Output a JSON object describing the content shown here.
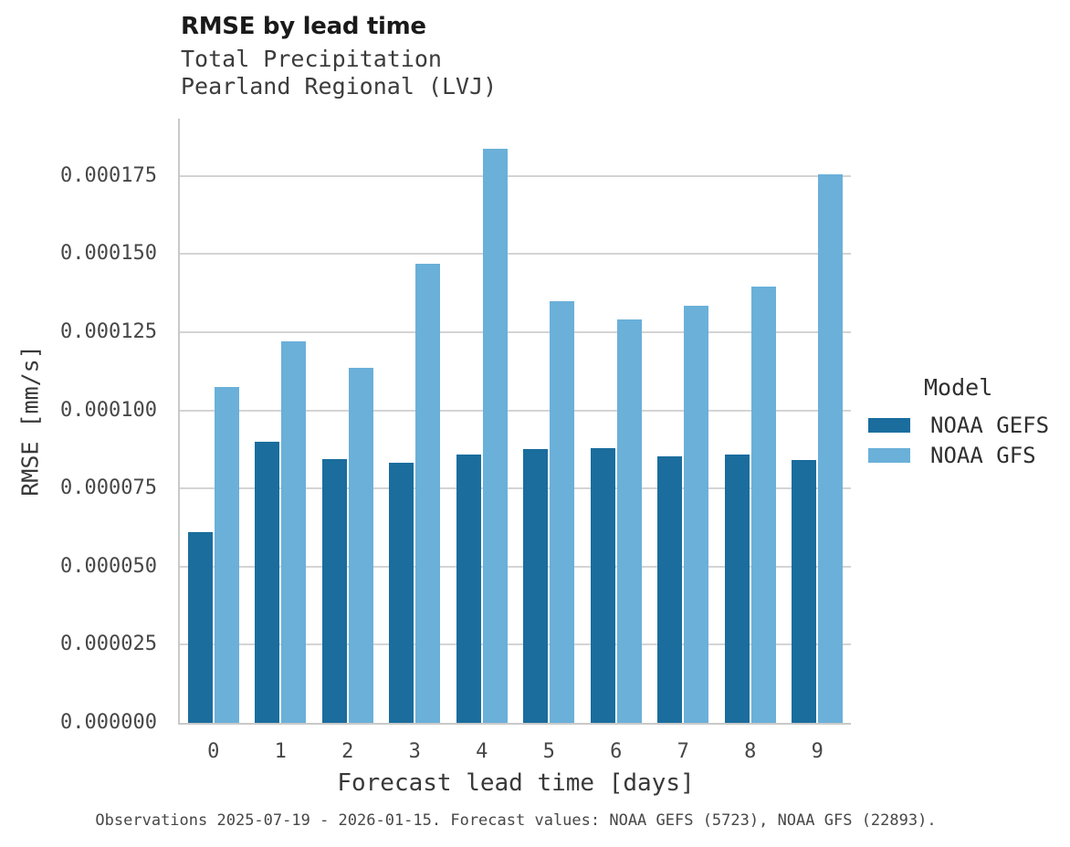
{
  "header": {
    "title": "RMSE by lead time",
    "subtitle_lines": [
      "Total Precipitation",
      "Pearland Regional (LVJ)"
    ]
  },
  "caption": "Observations 2025-07-19 - 2026-01-15. Forecast values: NOAA GEFS (5723), NOAA GFS (22893).",
  "legend": {
    "title": "Model",
    "items": [
      {
        "label": "NOAA GEFS",
        "color": "#1a6d9d"
      },
      {
        "label": "NOAA GFS",
        "color": "#6ab0d9"
      }
    ]
  },
  "colors": {
    "series_dark_blue": "#1a6d9d",
    "series_light_blue": "#6ab0d9",
    "gridline": "#d4d4d4",
    "axis_spine": "#c9c9c9",
    "title_text": "#1a1a1a",
    "body_text": "#474747"
  },
  "chart_data": {
    "type": "bar",
    "title": "RMSE by lead time",
    "subtitle": [
      "Total Precipitation",
      "Pearland Regional (LVJ)"
    ],
    "categories": [
      "0",
      "1",
      "2",
      "3",
      "4",
      "5",
      "6",
      "7",
      "8",
      "9"
    ],
    "series": [
      {
        "name": "NOAA GEFS",
        "color": "#1a6d9d",
        "values": [
          6.1e-05,
          9e-05,
          8.45e-05,
          8.32e-05,
          8.59e-05,
          8.76e-05,
          8.79e-05,
          8.53e-05,
          8.59e-05,
          8.41e-05
        ]
      },
      {
        "name": "NOAA GFS",
        "color": "#6ab0d9",
        "values": [
          0.0001075,
          0.0001221,
          0.0001136,
          0.0001469,
          0.0001837,
          0.0001349,
          0.0001291,
          0.0001335,
          0.0001396,
          0.0001755
        ]
      }
    ],
    "xlabel": "Forecast lead time [days]",
    "ylabel": "RMSE [mm/s]",
    "ylim": [
      0,
      0.0001933
    ],
    "yticks": [
      0,
      2.5e-05,
      5e-05,
      7.5e-05,
      0.0001,
      0.000125,
      0.00015,
      0.000175
    ],
    "ytick_format_decimals": 6,
    "grid": "horizontal",
    "legend_position": "right",
    "caption": "Observations 2025-07-19 - 2026-01-15. Forecast values: NOAA GEFS (5723), NOAA GFS (22893)."
  }
}
